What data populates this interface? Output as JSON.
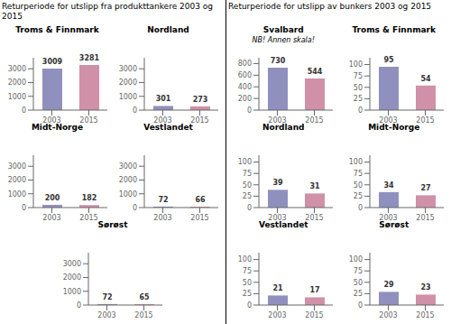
{
  "chart_data": [
    {
      "type": "bar",
      "annotations": [
        "Returperiode for utslipp fra produkttankere 2003 og 2015"
      ],
      "title": "Troms & Finnmark",
      "categories": [
        "2003",
        "2015"
      ],
      "values": [
        3009,
        3281
      ],
      "colors": [
        "#9090bf",
        "#d090a8"
      ],
      "ylim": [
        0,
        3800
      ],
      "yticks": [
        0,
        1000,
        2000,
        3000
      ],
      "grid": false,
      "data_labels": true
    },
    {
      "type": "bar",
      "title": "Nordland",
      "categories": [
        "2003",
        "2015"
      ],
      "values": [
        301,
        273
      ],
      "colors": [
        "#9090bf",
        "#d090a8"
      ],
      "ylim": [
        0,
        3800
      ],
      "yticks": [
        0,
        1000,
        2000,
        3000
      ],
      "grid": false,
      "data_labels": true
    },
    {
      "type": "bar",
      "title": "Midt-Norge",
      "categories": [
        "2003",
        "2015"
      ],
      "values": [
        200,
        182
      ],
      "colors": [
        "#9090bf",
        "#d090a8"
      ],
      "ylim": [
        0,
        3800
      ],
      "yticks": [
        0,
        1000,
        2000,
        3000
      ],
      "grid": false,
      "data_labels": true
    },
    {
      "type": "bar",
      "title": "Vestlandet",
      "categories": [
        "2003",
        "2015"
      ],
      "values": [
        72,
        66
      ],
      "colors": [
        "#9090bf",
        "#d090a8"
      ],
      "ylim": [
        0,
        3800
      ],
      "yticks": [
        0,
        1000,
        2000,
        3000
      ],
      "grid": false,
      "data_labels": true
    },
    {
      "type": "bar",
      "title": "Sørøst",
      "categories": [
        "2003",
        "2015"
      ],
      "values": [
        72,
        65
      ],
      "colors": [
        "#9090bf",
        "#d090a8"
      ],
      "ylim": [
        0,
        3800
      ],
      "yticks": [
        0,
        1000,
        2000,
        3000
      ],
      "grid": false,
      "data_labels": true
    },
    {
      "type": "bar",
      "annotations": [
        "Returperiode for utslipp av bunkers 2003 og 2015"
      ],
      "title": "Svalbard",
      "subtitle": "NB! Annen skala!",
      "categories": [
        "2003",
        "2015"
      ],
      "values": [
        730,
        544
      ],
      "colors": [
        "#9090bf",
        "#d090a8"
      ],
      "ylim": [
        0,
        900
      ],
      "yticks": [
        0,
        200,
        400,
        600,
        800
      ],
      "grid": false,
      "data_labels": true
    },
    {
      "type": "bar",
      "title": "Troms & Finnmark",
      "categories": [
        "2003",
        "2015"
      ],
      "values": [
        95,
        54
      ],
      "colors": [
        "#9090bf",
        "#d090a8"
      ],
      "ylim": [
        0,
        115
      ],
      "yticks": [
        0,
        25,
        50,
        75,
        100
      ],
      "grid": false,
      "data_labels": true
    },
    {
      "type": "bar",
      "title": "Nordland",
      "categories": [
        "2003",
        "2015"
      ],
      "values": [
        39,
        31
      ],
      "colors": [
        "#9090bf",
        "#d090a8"
      ],
      "ylim": [
        0,
        115
      ],
      "yticks": [
        0,
        25,
        50,
        75,
        100
      ],
      "grid": false,
      "data_labels": true
    },
    {
      "type": "bar",
      "title": "Midt-Norge",
      "categories": [
        "2003",
        "2015"
      ],
      "values": [
        34,
        27
      ],
      "colors": [
        "#9090bf",
        "#d090a8"
      ],
      "ylim": [
        0,
        115
      ],
      "yticks": [
        0,
        25,
        50,
        75,
        100
      ],
      "grid": false,
      "data_labels": true
    },
    {
      "type": "bar",
      "title": "Vestlandet",
      "categories": [
        "2003",
        "2015"
      ],
      "values": [
        21,
        17
      ],
      "colors": [
        "#9090bf",
        "#d090a8"
      ],
      "ylim": [
        0,
        115
      ],
      "yticks": [
        0,
        25,
        50,
        75,
        100
      ],
      "grid": false,
      "data_labels": true
    },
    {
      "type": "bar",
      "title": "Sørøst",
      "categories": [
        "2003",
        "2015"
      ],
      "values": [
        29,
        23
      ],
      "colors": [
        "#9090bf",
        "#d090a8"
      ],
      "ylim": [
        0,
        115
      ],
      "yticks": [
        0,
        25,
        50,
        75,
        100
      ],
      "grid": false,
      "data_labels": true
    }
  ]
}
